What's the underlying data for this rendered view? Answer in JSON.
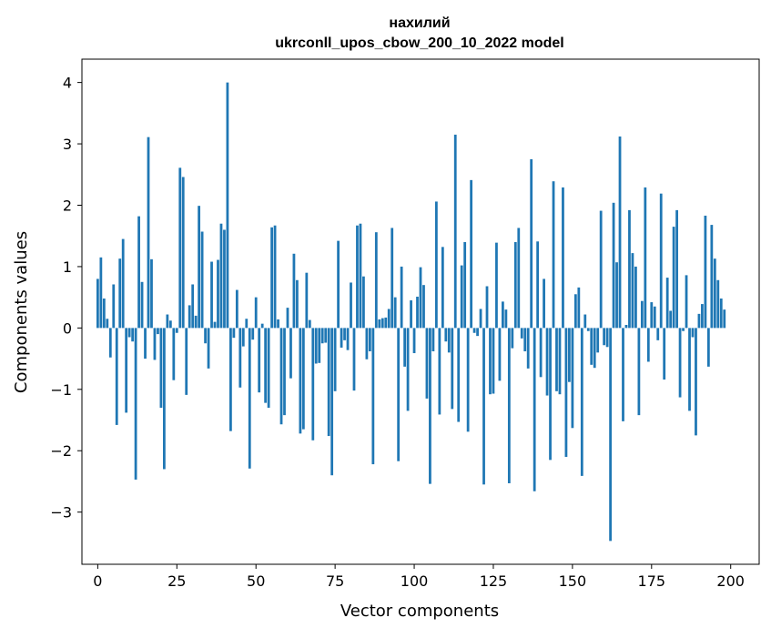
{
  "chart_data": {
    "type": "bar",
    "title_line1": "нахилий",
    "title_line2": "ukrconll_upos_cbow_200_10_2022 model",
    "xlabel": "Vector components",
    "ylabel": "Components values",
    "xlim": [
      -5,
      209
    ],
    "ylim": [
      -3.85,
      4.38
    ],
    "xticks": [
      0,
      25,
      50,
      75,
      100,
      125,
      150,
      175,
      200
    ],
    "yticks": [
      -3,
      -2,
      -1,
      0,
      1,
      2,
      3,
      4
    ],
    "ytick_labels": [
      "−3",
      "−2",
      "−1",
      "0",
      "1",
      "2",
      "3",
      "4"
    ],
    "bar_color": "#1f77b4",
    "grid": false,
    "values": [
      0.8,
      1.15,
      0.48,
      0.15,
      -0.48,
      0.71,
      -1.58,
      1.13,
      1.45,
      -1.38,
      -0.15,
      -0.22,
      -2.47,
      1.82,
      0.75,
      -0.5,
      3.11,
      1.12,
      -0.52,
      -0.1,
      -1.3,
      -2.3,
      0.22,
      0.12,
      -0.85,
      -0.08,
      2.61,
      2.46,
      -1.09,
      0.37,
      0.71,
      0.2,
      1.99,
      1.57,
      -0.25,
      -0.66,
      1.08,
      0.1,
      1.11,
      1.7,
      1.6,
      4.0,
      -1.68,
      -0.16,
      0.62,
      -0.97,
      -0.3,
      0.15,
      -2.29,
      -0.19,
      0.5,
      -1.05,
      0.07,
      -1.22,
      -1.3,
      1.64,
      1.67,
      0.14,
      -1.57,
      -1.42,
      0.33,
      -0.82,
      1.21,
      0.78,
      -1.72,
      -1.65,
      0.9,
      0.13,
      -1.83,
      -0.58,
      -0.57,
      -0.25,
      -0.24,
      -1.76,
      -2.4,
      -1.03,
      1.42,
      -0.32,
      -0.2,
      -0.36,
      0.74,
      -1.02,
      1.67,
      1.7,
      0.84,
      -0.51,
      -0.38,
      -2.22,
      1.56,
      0.14,
      0.16,
      0.17,
      0.31,
      1.63,
      0.5,
      -2.17,
      1.0,
      -0.63,
      -1.35,
      0.45,
      -0.41,
      0.51,
      0.99,
      0.7,
      -1.15,
      -2.54,
      -0.38,
      2.06,
      -1.41,
      1.32,
      -0.22,
      -0.4,
      -1.32,
      3.15,
      -1.53,
      1.02,
      1.4,
      -1.69,
      2.41,
      -0.08,
      -0.13,
      0.31,
      -2.55,
      0.68,
      -1.08,
      -1.07,
      1.39,
      -0.86,
      0.43,
      0.3,
      -2.53,
      -0.33,
      1.4,
      1.63,
      -0.17,
      -0.38,
      -0.66,
      2.75,
      -2.66,
      1.41,
      -0.8,
      0.8,
      -1.1,
      -2.15,
      2.39,
      -1.03,
      -1.08,
      2.29,
      -2.1,
      -0.88,
      -1.63,
      0.55,
      0.66,
      -2.41,
      0.22,
      -0.05,
      -0.6,
      -0.65,
      -0.4,
      1.91,
      -0.28,
      -0.31,
      -3.47,
      2.04,
      1.07,
      3.12,
      -1.52,
      0.05,
      1.92,
      1.22,
      1.0,
      -1.42,
      0.44,
      2.29,
      -0.55,
      0.42,
      0.35,
      -0.2,
      2.19,
      -0.84,
      0.82,
      0.28,
      1.65,
      1.92,
      -1.13,
      -0.05,
      0.86,
      -1.35,
      -0.15,
      -1.75,
      0.23,
      0.39,
      1.83,
      -0.63,
      1.68,
      1.13,
      0.78,
      0.48,
      0.3
    ]
  }
}
